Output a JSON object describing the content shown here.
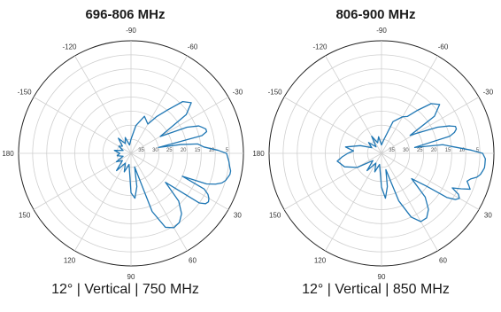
{
  "chart_data": [
    {
      "type": "line",
      "polar": true,
      "title": "696-806 MHz",
      "caption": "12°  |  Vertical  |  750 MHz",
      "angle_labels": [
        "0",
        "-30",
        "-60",
        "-90",
        "-120",
        "-150",
        "180",
        "150",
        "120",
        "90",
        "60",
        "30"
      ],
      "radial_labels": [
        "35",
        "30",
        "25",
        "20",
        "15",
        "10",
        "5"
      ],
      "rlim_db": [
        40,
        0
      ],
      "grid": true,
      "color": "#1f77b4",
      "series": [
        {
          "theta_deg": [
            0,
            5,
            8,
            10,
            12,
            14,
            16,
            18,
            20,
            22,
            24,
            26,
            28,
            30,
            32,
            34,
            36,
            40,
            45,
            50,
            55,
            60,
            65,
            70,
            75,
            80,
            85,
            90,
            100,
            110,
            120,
            130,
            140,
            150,
            160,
            170,
            180,
            190,
            200,
            210,
            220,
            230,
            240,
            250,
            260,
            270,
            280,
            290,
            300,
            305,
            310,
            315,
            320,
            325,
            330,
            335,
            338,
            340,
            342,
            344,
            346,
            348,
            350,
            352,
            355,
            358,
            360
          ],
          "values_db": [
            6,
            5,
            4.5,
            4,
            4,
            4.5,
            5,
            6,
            8,
            11,
            20,
            11,
            9,
            8,
            7.5,
            8,
            10,
            24,
            16,
            12,
            10,
            9.5,
            11,
            18,
            35,
            28,
            24,
            26,
            36,
            33,
            36,
            32,
            36,
            34,
            37,
            35,
            36,
            34,
            37,
            35,
            36,
            33,
            36,
            34,
            37,
            35,
            30,
            26,
            28,
            24,
            20,
            14,
            12,
            16,
            28,
            18,
            14,
            13,
            12,
            12,
            14,
            30,
            22,
            16,
            14,
            9,
            6
          ]
        }
      ]
    },
    {
      "type": "line",
      "polar": true,
      "title": "806-900 MHz",
      "caption": "12°  |  Vertical  |  850 MHz",
      "angle_labels": [
        "0",
        "-30",
        "-60",
        "-90",
        "-120",
        "-150",
        "180",
        "150",
        "120",
        "90",
        "60",
        "30"
      ],
      "radial_labels": [
        "35",
        "30",
        "25",
        "20",
        "15",
        "10",
        "5"
      ],
      "rlim_db": [
        40,
        0
      ],
      "grid": true,
      "color": "#1f77b4",
      "series": [
        {
          "theta_deg": [
            0,
            3,
            6,
            8,
            10,
            12,
            14,
            16,
            18,
            20,
            22,
            24,
            26,
            28,
            30,
            32,
            34,
            36,
            40,
            45,
            50,
            55,
            60,
            65,
            70,
            75,
            80,
            85,
            90,
            100,
            110,
            120,
            130,
            140,
            150,
            160,
            170,
            175,
            180,
            185,
            190,
            200,
            210,
            220,
            230,
            240,
            250,
            260,
            270,
            280,
            290,
            300,
            305,
            310,
            315,
            320,
            325,
            328,
            330,
            335,
            338,
            340,
            342,
            344,
            346,
            348,
            350,
            352,
            355,
            358,
            360
          ],
          "values_db": [
            4,
            3,
            3,
            3,
            3.5,
            4,
            5,
            7,
            8,
            7,
            6,
            9,
            12,
            9,
            8,
            9,
            12,
            20,
            26,
            18,
            14,
            12,
            12,
            15,
            22,
            34,
            28,
            24,
            28,
            36,
            33,
            36,
            32,
            36,
            30,
            26,
            24,
            26,
            28,
            30,
            27,
            32,
            36,
            34,
            37,
            33,
            36,
            34,
            37,
            35,
            28,
            25,
            24,
            20,
            15,
            13,
            17,
            28,
            26,
            18,
            14,
            12,
            12,
            13,
            15,
            24,
            28,
            18,
            14,
            8,
            4
          ]
        }
      ]
    }
  ]
}
